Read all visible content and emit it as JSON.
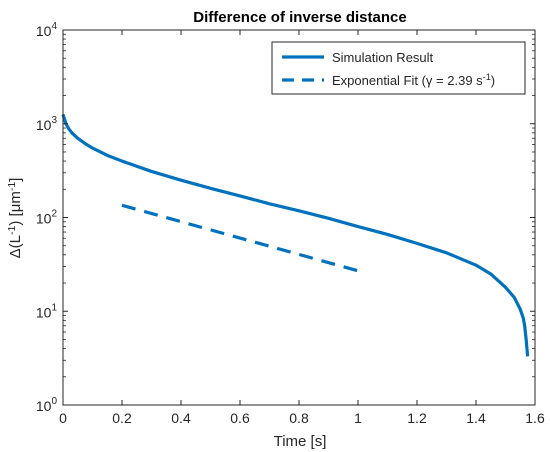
{
  "chart_data": {
    "type": "line",
    "title": "Difference of inverse distance",
    "xlabel": "Time [s]",
    "ylabel": {
      "parts": [
        {
          "text": "Δ(L"
        },
        {
          "text": "-1",
          "sup": true
        },
        {
          "text": ") [μm"
        },
        {
          "text": "-1",
          "sup": true
        },
        {
          "text": "]"
        }
      ]
    },
    "xlim": [
      0,
      1.6
    ],
    "ylim": [
      1,
      10000
    ],
    "yscale": "log",
    "grid": false,
    "legend_position": "top-right",
    "xticks": [
      {
        "value": 0,
        "label": "0"
      },
      {
        "value": 0.2,
        "label": "0.2"
      },
      {
        "value": 0.4,
        "label": "0.4"
      },
      {
        "value": 0.6,
        "label": "0.6"
      },
      {
        "value": 0.8,
        "label": "0.8"
      },
      {
        "value": 1,
        "label": "1"
      },
      {
        "value": 1.2,
        "label": "1.2"
      },
      {
        "value": 1.4,
        "label": "1.4"
      },
      {
        "value": 1.6,
        "label": "1.6"
      }
    ],
    "yticks": [
      {
        "value": 1,
        "base": "10",
        "exp": "0"
      },
      {
        "value": 10,
        "base": "10",
        "exp": "1"
      },
      {
        "value": 100,
        "base": "10",
        "exp": "2"
      },
      {
        "value": 1000,
        "base": "10",
        "exp": "3"
      },
      {
        "value": 10000,
        "base": "10",
        "exp": "4"
      }
    ],
    "series": [
      {
        "name": "Simulation Result",
        "style": "solid",
        "color": "#0072BD",
        "points": [
          [
            0,
            1260
          ],
          [
            0.01,
            1000
          ],
          [
            0.02,
            880
          ],
          [
            0.03,
            800
          ],
          [
            0.05,
            700
          ],
          [
            0.08,
            600
          ],
          [
            0.1,
            550
          ],
          [
            0.15,
            460
          ],
          [
            0.2,
            400
          ],
          [
            0.3,
            310
          ],
          [
            0.4,
            250
          ],
          [
            0.5,
            205
          ],
          [
            0.6,
            170
          ],
          [
            0.7,
            140
          ],
          [
            0.8,
            118
          ],
          [
            0.9,
            98
          ],
          [
            1.0,
            80
          ],
          [
            1.1,
            66
          ],
          [
            1.2,
            53
          ],
          [
            1.3,
            42
          ],
          [
            1.4,
            31
          ],
          [
            1.45,
            25
          ],
          [
            1.5,
            18
          ],
          [
            1.53,
            14
          ],
          [
            1.55,
            10.5
          ],
          [
            1.56,
            8.5
          ],
          [
            1.565,
            7
          ],
          [
            1.57,
            5
          ],
          [
            1.575,
            3.3
          ]
        ]
      },
      {
        "name": {
          "parts": [
            {
              "text": "Exponential Fit (γ = 2.39 s"
            },
            {
              "text": "-1",
              "sup": true
            },
            {
              "text": ")"
            }
          ]
        },
        "style": "dashed",
        "color": "#0072BD",
        "points": [
          [
            0.2,
            135
          ],
          [
            1.0,
            27
          ]
        ]
      }
    ]
  }
}
